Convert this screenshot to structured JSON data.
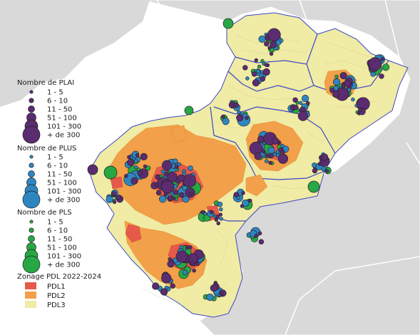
{
  "legend": {
    "plai": {
      "title": "Nombre de PLAI",
      "color": "#5b2c6f",
      "classes": [
        "1 - 5",
        "6 - 10",
        "11 - 50",
        "51 - 100",
        "101 - 300",
        "+ de 300"
      ]
    },
    "plus": {
      "title": "Nombre de PLUS",
      "color": "#2e86c1",
      "classes": [
        "1 - 5",
        "6 - 10",
        "11 - 50",
        "51 - 100",
        "101 - 300",
        "+ de 300"
      ]
    },
    "pls": {
      "title": "Nombre de PLS",
      "color": "#28a745",
      "classes": [
        "1 - 5",
        "6 - 10",
        "11 - 50",
        "51 - 100",
        "101 - 300",
        "+ de 300"
      ]
    },
    "zonage": {
      "title": "Zonage PDL 2022-2024",
      "items": [
        {
          "label": "PDL1",
          "color": "#e55a4a"
        },
        {
          "label": "PDL2",
          "color": "#f2a049"
        },
        {
          "label": "PDL3",
          "color": "#f0eba5"
        }
      ]
    }
  },
  "colors": {
    "background": "#f2f2f2",
    "neighbor_land": "#d9d9d9",
    "sea": "#ffffff",
    "department_border": "#3b48c7",
    "circle_outline": "#1f1f1f"
  }
}
